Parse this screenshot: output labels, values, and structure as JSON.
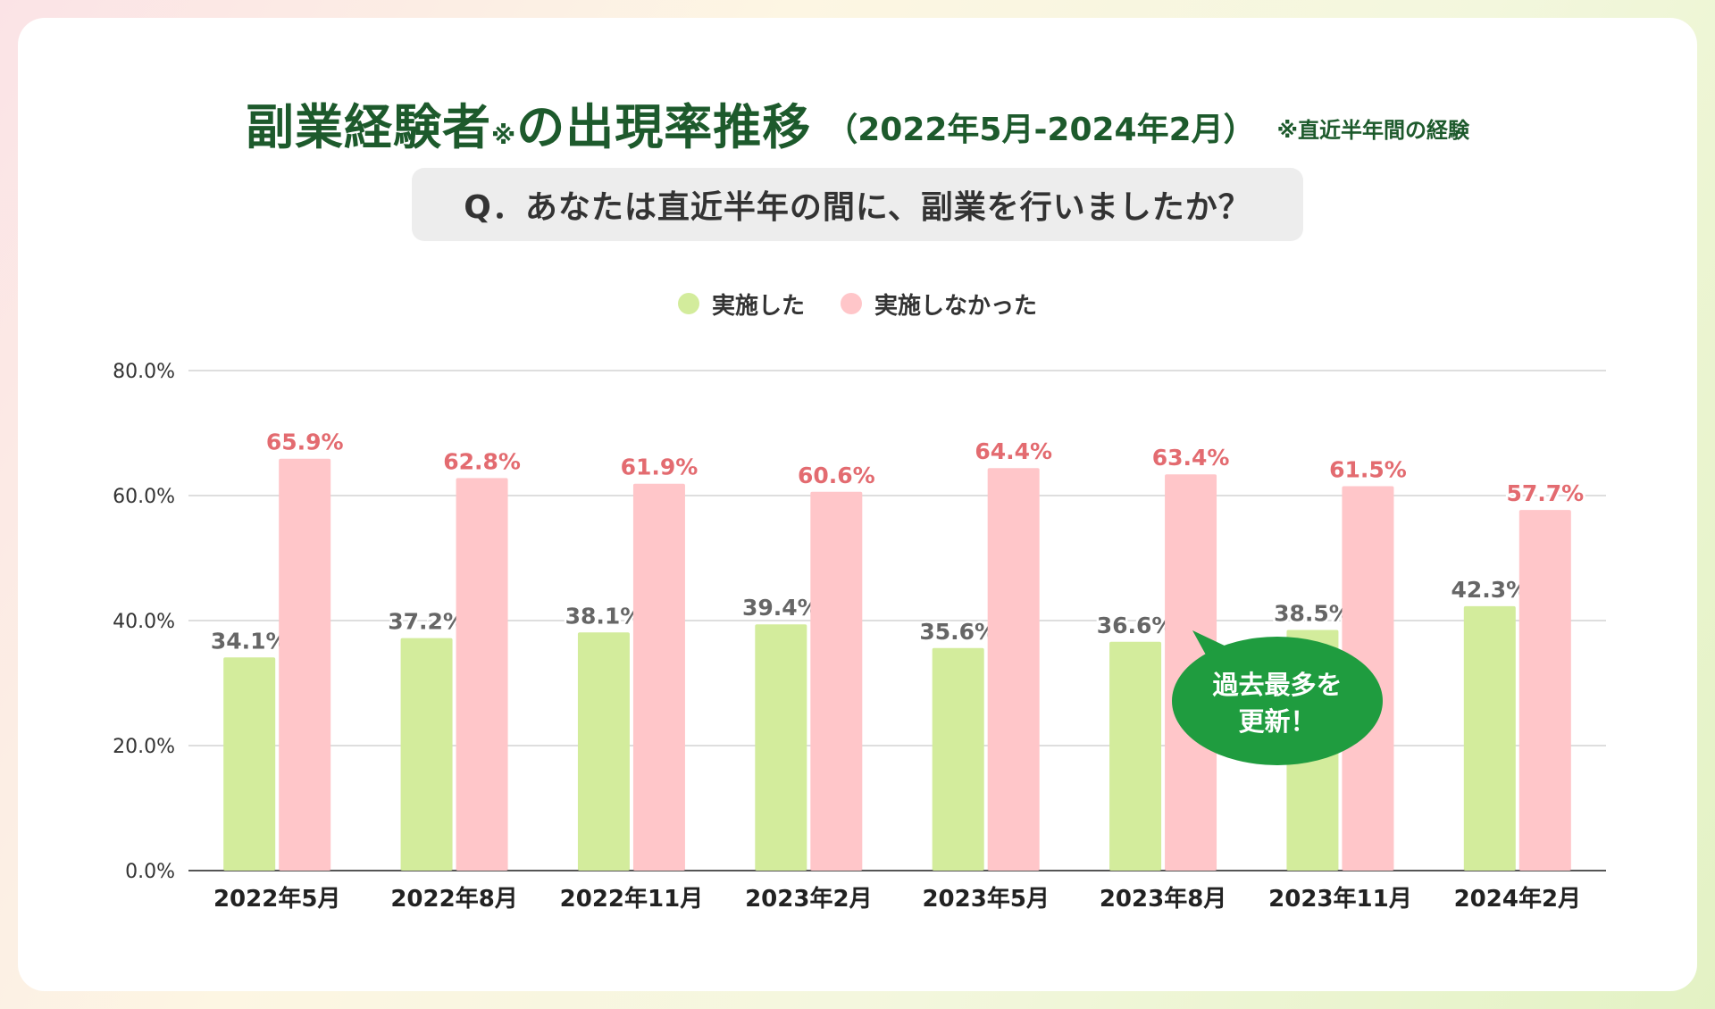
{
  "title": {
    "main": "副業経験者",
    "mark": "※",
    "main2": "の出現率推移",
    "period": "（2022年5月-2024年2月）",
    "note": "※直近半年間の経験"
  },
  "question": "Q．あなたは直近半年の間に、副業を行いましたか？",
  "callout": {
    "line1": "過去最多を",
    "line2": "更新！"
  },
  "colors": {
    "did": "#d3ec9c",
    "did_not": "#ffc6c9",
    "did_not_label": "#e36b70",
    "did_label": "#666666",
    "callout_bg": "#1f9c3f",
    "title": "#1d5a2c"
  },
  "chart_data": {
    "type": "bar",
    "title": "副業経験者※の出現率推移（2022年5月-2024年2月）",
    "categories": [
      "2022年5月",
      "2022年8月",
      "2022年11月",
      "2023年2月",
      "2023年5月",
      "2023年8月",
      "2023年11月",
      "2024年2月"
    ],
    "series": [
      {
        "name": "実施した",
        "values": [
          34.1,
          37.2,
          38.1,
          39.4,
          35.6,
          36.6,
          38.5,
          42.3
        ],
        "labels": [
          "34.1%",
          "37.2%",
          "38.1%",
          "39.4%",
          "35.6%",
          "36.6%",
          "38.5%",
          "42.3%"
        ]
      },
      {
        "name": "実施しなかった",
        "values": [
          65.9,
          62.8,
          61.9,
          60.6,
          64.4,
          63.4,
          61.5,
          57.7
        ],
        "labels": [
          "65.9%",
          "62.8%",
          "61.9%",
          "60.6%",
          "64.4%",
          "63.4%",
          "61.5%",
          "57.7%"
        ]
      }
    ],
    "yticks": [
      "0.0%",
      "20.0%",
      "40.0%",
      "60.0%",
      "80.0%"
    ],
    "ytick_values": [
      0,
      20,
      40,
      60,
      80
    ],
    "ylim": [
      0,
      80
    ],
    "xlabel": "",
    "ylabel": "",
    "grid": true,
    "legend_position": "top-center"
  }
}
